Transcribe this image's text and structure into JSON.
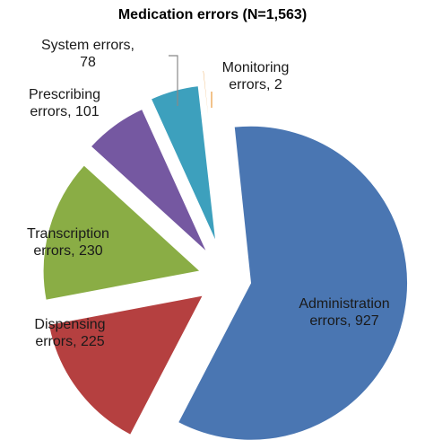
{
  "chart_data": {
    "type": "pie",
    "title": "Medication errors (N=1,563)",
    "slices": [
      {
        "key": "administration",
        "label": "Administration errors",
        "value": 927,
        "color": "#4a76b2"
      },
      {
        "key": "dispensing",
        "label": "Dispensing errors",
        "value": 225,
        "color": "#b54040"
      },
      {
        "key": "transcription",
        "label": "Transcription errors",
        "value": 230,
        "color": "#8aad45"
      },
      {
        "key": "prescribing",
        "label": "Prescribing errors",
        "value": 101,
        "color": "#7558a1"
      },
      {
        "key": "system",
        "label": "System errors",
        "value": 78,
        "color": "#3da0bd"
      },
      {
        "key": "monitoring",
        "label": "Monitoring errors",
        "value": 2,
        "color": "#e89a3c"
      }
    ],
    "label_lines": {
      "administration": [
        "Administration",
        "errors, 927"
      ],
      "dispensing": [
        "Dispensing",
        "errors, 225"
      ],
      "transcription": [
        "Transcription",
        "errors, 230"
      ],
      "prescribing": [
        "Prescribing",
        "errors, 101"
      ],
      "system": [
        "System errors,",
        "78"
      ],
      "monitoring": [
        "Monitoring",
        "errors, 2"
      ]
    },
    "legend": "none"
  }
}
